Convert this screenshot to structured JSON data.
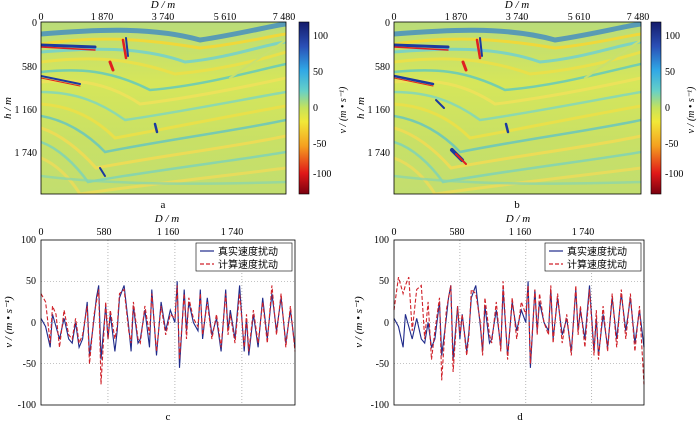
{
  "chart_data": [
    {
      "panel": "a",
      "type": "heatmap",
      "caption": "a",
      "xlabel": "D / m",
      "ylabel": "h / m",
      "x_ticks": [
        "0",
        "1 870",
        "3 740",
        "5 610",
        "7 480"
      ],
      "x_tick_values": [
        0,
        1870,
        3740,
        5610,
        7480
      ],
      "y_ticks": [
        "0",
        "580",
        "1 160",
        "1 740"
      ],
      "y_tick_values": [
        0,
        580,
        1160,
        1740
      ],
      "xlim": [
        0,
        7480
      ],
      "ylim": [
        2200,
        0
      ],
      "colorbar": {
        "label": "v / (m • s⁻¹)",
        "ticks": [
          "100",
          "50",
          "0",
          "-50",
          "-100"
        ],
        "tick_values": [
          100,
          50,
          0,
          -50,
          -100
        ],
        "range": [
          -120,
          120
        ]
      }
    },
    {
      "panel": "b",
      "type": "heatmap",
      "caption": "b",
      "xlabel": "D / m",
      "ylabel": "h / m",
      "x_ticks": [
        "0",
        "1 870",
        "3 740",
        "5 610",
        "7 480"
      ],
      "x_tick_values": [
        0,
        1870,
        3740,
        5610,
        7480
      ],
      "y_ticks": [
        "0",
        "580",
        "1 160",
        "1 740"
      ],
      "y_tick_values": [
        0,
        580,
        1160,
        1740
      ],
      "xlim": [
        0,
        7480
      ],
      "ylim": [
        2200,
        0
      ],
      "colorbar": {
        "label": "v / (m • s⁻¹)",
        "ticks": [
          "100",
          "50",
          "0",
          "-50",
          "-100"
        ],
        "tick_values": [
          100,
          50,
          0,
          -50,
          -100
        ],
        "range": [
          -120,
          120
        ]
      }
    },
    {
      "panel": "c",
      "type": "line",
      "caption": "c",
      "xlabel": "D / m",
      "ylabel": "v / (m • s⁻¹)",
      "x_ticks": [
        "0",
        "580",
        "1 160",
        "1 740"
      ],
      "x_tick_values": [
        0,
        580,
        1160,
        1740
      ],
      "y_ticks": [
        "100",
        "50",
        "0",
        "-50",
        "-100"
      ],
      "y_tick_values": [
        100,
        50,
        0,
        -50,
        -100
      ],
      "xlim": [
        0,
        2200
      ],
      "ylim": [
        -100,
        100
      ],
      "grid": "dotted",
      "legend": [
        "真实速度扰动",
        "计算速度扰动"
      ],
      "legend_position": "top-right",
      "series": [
        {
          "name": "真实速度扰动",
          "color": "#1f2a8a",
          "style": "solid",
          "x": [
            0,
            40,
            80,
            100,
            130,
            160,
            200,
            240,
            270,
            300,
            330,
            360,
            400,
            420,
            460,
            480,
            500,
            520,
            560,
            580,
            600,
            640,
            660,
            680,
            720,
            760,
            780,
            800,
            840,
            860,
            900,
            940,
            960,
            1000,
            1040,
            1080,
            1120,
            1160,
            1180,
            1200,
            1240,
            1260,
            1280,
            1320,
            1360,
            1380,
            1400,
            1440,
            1480,
            1520,
            1560,
            1600,
            1620,
            1640,
            1680,
            1720,
            1760,
            1780,
            1800,
            1840,
            1880,
            1920,
            1960,
            2000,
            2040,
            2080,
            2120,
            2160,
            2200
          ],
          "y": [
            5,
            -5,
            -30,
            10,
            -5,
            -20,
            5,
            -20,
            -25,
            0,
            -30,
            -20,
            25,
            -40,
            5,
            30,
            45,
            -45,
            20,
            -20,
            10,
            -35,
            -10,
            30,
            45,
            -5,
            -35,
            20,
            -25,
            -20,
            15,
            -30,
            40,
            -40,
            25,
            -10,
            15,
            0,
            50,
            -55,
            40,
            -10,
            25,
            0,
            -10,
            40,
            -20,
            30,
            -15,
            5,
            -35,
            40,
            -10,
            15,
            -20,
            45,
            -35,
            5,
            -40,
            10,
            -30,
            30,
            -20,
            35,
            -10,
            30,
            -25,
            15,
            -30
          ]
        },
        {
          "name": "计算速度扰动",
          "color": "#d0222a",
          "style": "dashed",
          "x": [
            0,
            40,
            80,
            100,
            130,
            160,
            200,
            240,
            270,
            300,
            330,
            360,
            400,
            420,
            460,
            480,
            500,
            520,
            560,
            580,
            600,
            640,
            660,
            680,
            720,
            760,
            780,
            800,
            840,
            860,
            900,
            940,
            960,
            1000,
            1040,
            1080,
            1120,
            1160,
            1180,
            1200,
            1240,
            1260,
            1280,
            1320,
            1360,
            1380,
            1400,
            1440,
            1480,
            1520,
            1560,
            1600,
            1620,
            1640,
            1680,
            1720,
            1760,
            1780,
            1800,
            1840,
            1880,
            1920,
            1960,
            2000,
            2040,
            2080,
            2120,
            2160,
            2200
          ],
          "y": [
            35,
            25,
            -25,
            20,
            10,
            -30,
            15,
            -15,
            -20,
            5,
            -25,
            -15,
            20,
            -50,
            10,
            25,
            40,
            -75,
            25,
            -20,
            15,
            -20,
            -5,
            35,
            40,
            -10,
            -25,
            25,
            -20,
            -25,
            20,
            -15,
            35,
            -35,
            20,
            -15,
            10,
            5,
            45,
            -45,
            35,
            -20,
            30,
            5,
            -5,
            35,
            -15,
            25,
            -20,
            10,
            -30,
            35,
            -15,
            10,
            -25,
            35,
            -30,
            10,
            -35,
            15,
            -25,
            25,
            -25,
            45,
            -15,
            35,
            -30,
            20,
            -35
          ]
        }
      ]
    },
    {
      "panel": "d",
      "type": "line",
      "caption": "d",
      "xlabel": "D / m",
      "ylabel": "v / (m • s⁻¹)",
      "x_ticks": [
        "0",
        "580",
        "1 160",
        "1 740"
      ],
      "x_tick_values": [
        0,
        580,
        1160,
        1740
      ],
      "y_ticks": [
        "100",
        "50",
        "0",
        "-50",
        "-100"
      ],
      "y_tick_values": [
        100,
        50,
        0,
        -50,
        -100
      ],
      "xlim": [
        0,
        2200
      ],
      "ylim": [
        -100,
        100
      ],
      "grid": "dotted",
      "legend": [
        "真实速度扰动",
        "计算速度扰动"
      ],
      "legend_position": "top-right",
      "series": [
        {
          "name": "真实速度扰动",
          "color": "#1f2a8a",
          "style": "solid",
          "x": [
            0,
            40,
            80,
            100,
            130,
            160,
            200,
            240,
            270,
            300,
            330,
            360,
            400,
            420,
            460,
            480,
            500,
            520,
            560,
            580,
            600,
            640,
            660,
            680,
            720,
            760,
            780,
            800,
            840,
            860,
            900,
            940,
            960,
            1000,
            1040,
            1080,
            1120,
            1160,
            1180,
            1200,
            1240,
            1260,
            1280,
            1320,
            1360,
            1380,
            1400,
            1440,
            1480,
            1520,
            1560,
            1600,
            1620,
            1640,
            1680,
            1720,
            1760,
            1780,
            1800,
            1840,
            1880,
            1920,
            1960,
            2000,
            2040,
            2080,
            2120,
            2160,
            2200
          ],
          "y": [
            5,
            -5,
            -30,
            10,
            -5,
            -20,
            5,
            -20,
            -25,
            0,
            -30,
            -20,
            25,
            -40,
            5,
            30,
            45,
            -45,
            20,
            -20,
            10,
            -35,
            -10,
            30,
            45,
            -5,
            -35,
            20,
            -25,
            -20,
            15,
            -30,
            40,
            -40,
            25,
            -10,
            15,
            0,
            50,
            -55,
            40,
            -10,
            25,
            0,
            -10,
            40,
            -20,
            30,
            -15,
            5,
            -35,
            40,
            -10,
            15,
            -20,
            45,
            -35,
            5,
            -40,
            10,
            -30,
            30,
            -20,
            35,
            -10,
            30,
            -25,
            15,
            -30
          ]
        },
        {
          "name": "计算速度扰动",
          "color": "#d0222a",
          "style": "dashed",
          "x": [
            0,
            40,
            80,
            100,
            130,
            160,
            200,
            240,
            270,
            300,
            330,
            360,
            400,
            420,
            460,
            480,
            500,
            520,
            560,
            580,
            600,
            640,
            660,
            680,
            720,
            760,
            780,
            800,
            840,
            860,
            900,
            940,
            960,
            1000,
            1040,
            1080,
            1120,
            1160,
            1180,
            1200,
            1240,
            1260,
            1280,
            1320,
            1360,
            1380,
            1400,
            1440,
            1480,
            1520,
            1560,
            1600,
            1620,
            1640,
            1680,
            1720,
            1760,
            1780,
            1800,
            1840,
            1880,
            1920,
            1960,
            2000,
            2040,
            2080,
            2120,
            2160,
            2200
          ],
          "y": [
            15,
            55,
            35,
            45,
            55,
            -10,
            40,
            45,
            -20,
            25,
            -45,
            -10,
            30,
            -70,
            15,
            30,
            45,
            -60,
            20,
            -15,
            10,
            -40,
            -15,
            40,
            35,
            0,
            -40,
            30,
            -15,
            -25,
            25,
            -35,
            50,
            -45,
            30,
            -20,
            25,
            10,
            45,
            -50,
            40,
            -15,
            35,
            0,
            -15,
            45,
            -25,
            35,
            -25,
            10,
            -40,
            45,
            -15,
            20,
            -30,
            40,
            -40,
            15,
            -45,
            20,
            -35,
            35,
            -30,
            40,
            -20,
            35,
            -35,
            20,
            -75
          ]
        }
      ]
    }
  ]
}
